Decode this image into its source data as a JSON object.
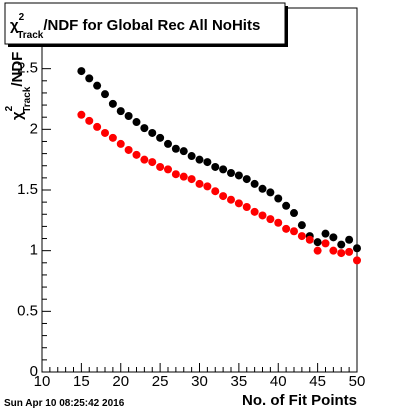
{
  "chart_data": {
    "type": "scatter",
    "title": {
      "symbol": "χ",
      "sup": "2",
      "sub": "Track",
      "text": "/NDF for Global Rec All NoHits"
    },
    "ylabel": {
      "symbol": "χ",
      "sup": "2",
      "sub": "Track",
      "text": "/NDF"
    },
    "xlabel": "No. of Fit Points",
    "footer": "Sun Apr 10 08:25:42 2016",
    "x": [
      15,
      16,
      17,
      18,
      19,
      20,
      21,
      22,
      23,
      24,
      25,
      26,
      27,
      28,
      29,
      30,
      31,
      32,
      33,
      34,
      35,
      36,
      37,
      38,
      39,
      40,
      41,
      42,
      43,
      44,
      45,
      46,
      47,
      48,
      49,
      50
    ],
    "series": [
      {
        "color": "#000000",
        "values": [
          2.48,
          2.42,
          2.36,
          2.29,
          2.21,
          2.15,
          2.11,
          2.06,
          2.01,
          1.97,
          1.93,
          1.88,
          1.84,
          1.82,
          1.78,
          1.75,
          1.73,
          1.69,
          1.67,
          1.64,
          1.62,
          1.59,
          1.55,
          1.51,
          1.48,
          1.43,
          1.37,
          1.31,
          1.21,
          1.12,
          1.07,
          1.14,
          1.11,
          1.05,
          1.09,
          1.02
        ]
      },
      {
        "color": "#ff0000",
        "values": [
          2.12,
          2.07,
          2.02,
          1.97,
          1.93,
          1.88,
          1.83,
          1.79,
          1.75,
          1.73,
          1.69,
          1.67,
          1.63,
          1.61,
          1.59,
          1.55,
          1.53,
          1.49,
          1.45,
          1.42,
          1.39,
          1.36,
          1.32,
          1.29,
          1.26,
          1.23,
          1.18,
          1.16,
          1.12,
          1.09,
          1.0,
          1.06,
          1.0,
          0.98,
          0.99,
          0.92
        ]
      }
    ],
    "xlim": [
      10,
      50
    ],
    "xticks": [
      10,
      15,
      20,
      25,
      30,
      35,
      40,
      45,
      50
    ],
    "ylim": [
      0,
      3
    ],
    "yticks": [
      0,
      0.5,
      1,
      1.5,
      2,
      2.5
    ]
  }
}
